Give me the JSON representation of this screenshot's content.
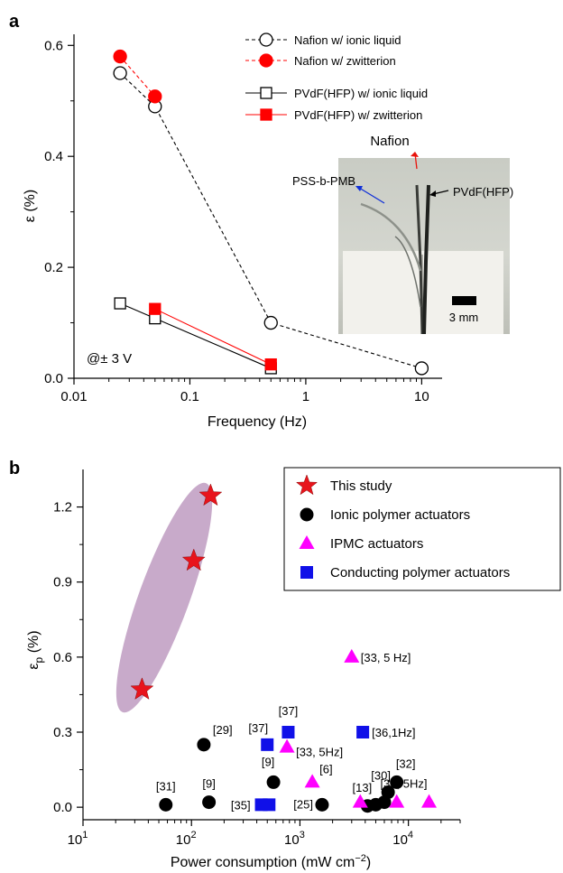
{
  "chart_data": [
    {
      "panel": "a",
      "type": "line",
      "xlabel": "Frequency (Hz)",
      "ylabel": "ε (%)",
      "xscale": "log",
      "xlim": [
        0.01,
        15
      ],
      "ylim": [
        0,
        0.62
      ],
      "xticks": [
        0.01,
        0.1,
        1,
        10
      ],
      "xtick_labels": [
        "0.01",
        "0.1",
        "1",
        "10"
      ],
      "yticks": [
        0,
        0.2,
        0.4,
        0.6
      ],
      "ytick_labels": [
        "0.0",
        "0.2",
        "0.4",
        "0.6"
      ],
      "annotation": "@± 3 V",
      "legend_position": "top-right",
      "series": [
        {
          "name": "Nafion w/ ionic liquid",
          "marker": "open-circle",
          "line": "dashed",
          "color": "#000000",
          "x": [
            0.025,
            0.05,
            0.5,
            10
          ],
          "y": [
            0.55,
            0.49,
            0.1,
            0.018
          ]
        },
        {
          "name": "Nafion w/ zwitterion",
          "marker": "filled-circle",
          "line": "dashed",
          "color": "#ff0000",
          "x": [
            0.025,
            0.05
          ],
          "y": [
            0.58,
            0.508
          ]
        },
        {
          "name": "PVdF(HFP) w/ ionic liquid",
          "marker": "open-square",
          "line": "solid",
          "color": "#000000",
          "x": [
            0.025,
            0.05,
            0.5
          ],
          "y": [
            0.135,
            0.108,
            0.018
          ]
        },
        {
          "name": "PVdF(HFP) w/ zwitterion",
          "marker": "filled-square",
          "line": "solid",
          "color": "#ff0000",
          "x": [
            0.05,
            0.5
          ],
          "y": [
            0.125,
            0.025
          ]
        }
      ],
      "inset": {
        "labels": {
          "nafion": "Nafion",
          "pss": "PSS-b-PMB",
          "pvdf": "PVdF(HFP)",
          "scale": "3 mm"
        },
        "colors": {
          "nafion": "#e8140c",
          "pss": "#1030d8",
          "pvdf": "#000000"
        }
      }
    },
    {
      "panel": "b",
      "type": "scatter",
      "xlabel": "Power consumption (mW cm⁻²)",
      "ylabel": "εp (%)",
      "xscale": "log",
      "xlim": [
        10,
        30000
      ],
      "ylim": [
        -0.05,
        1.35
      ],
      "xticks": [
        10,
        100,
        1000,
        10000
      ],
      "yticks": [
        0,
        0.3,
        0.6,
        0.9,
        1.2
      ],
      "ytick_labels": [
        "0.0",
        "0.3",
        "0.6",
        "0.9",
        "1.2"
      ],
      "legend_position": "top-right",
      "series": [
        {
          "name": "This study",
          "marker": "star",
          "color": "#e8141c",
          "points": [
            {
              "x": 35,
              "y": 0.47,
              "label": ""
            },
            {
              "x": 105,
              "y": 0.985,
              "label": ""
            },
            {
              "x": 150,
              "y": 1.245,
              "label": ""
            }
          ]
        },
        {
          "name": "Ionic polymer actuators",
          "marker": "circle",
          "color": "#000000",
          "points": [
            {
              "x": 130,
              "y": 0.25,
              "label": "[29]"
            },
            {
              "x": 58,
              "y": 0.01,
              "label": "[31]"
            },
            {
              "x": 145,
              "y": 0.02,
              "label": "[9]"
            },
            {
              "x": 570,
              "y": 0.1,
              "label": "[9]"
            },
            {
              "x": 1600,
              "y": 0.01,
              "label": "[25]"
            },
            {
              "x": 4200,
              "y": 0.005,
              "label": "[13]"
            },
            {
              "x": 5000,
              "y": 0.01,
              "label": ""
            },
            {
              "x": 6000,
              "y": 0.02,
              "label": ""
            },
            {
              "x": 6500,
              "y": 0.06,
              "label": "[30]"
            },
            {
              "x": 7800,
              "y": 0.1,
              "label": "[32]"
            }
          ]
        },
        {
          "name": "IPMC actuators",
          "marker": "triangle",
          "color": "#ff00ff",
          "points": [
            {
              "x": 3000,
              "y": 0.6,
              "label": "[33, 5 Hz]"
            },
            {
              "x": 760,
              "y": 0.24,
              "label": "[33, 5Hz]"
            },
            {
              "x": 1300,
              "y": 0.1,
              "label": "[6]"
            },
            {
              "x": 3600,
              "y": 0.02,
              "label": ""
            },
            {
              "x": 7800,
              "y": 0.02,
              "label": ""
            },
            {
              "x": 15500,
              "y": 0.02,
              "label": "[34, 5Hz]"
            }
          ]
        },
        {
          "name": "Conducting polymer actuators",
          "marker": "square",
          "color": "#1010e8",
          "points": [
            {
              "x": 500,
              "y": 0.25,
              "label": "[37]"
            },
            {
              "x": 780,
              "y": 0.3,
              "label": "[37]"
            },
            {
              "x": 3800,
              "y": 0.3,
              "label": "[36,1Hz]"
            },
            {
              "x": 440,
              "y": 0.01,
              "label": "[35]"
            },
            {
              "x": 520,
              "y": 0.01,
              "label": ""
            }
          ]
        }
      ]
    }
  ],
  "labels": {
    "panel_a": "a",
    "panel_b": "b"
  }
}
